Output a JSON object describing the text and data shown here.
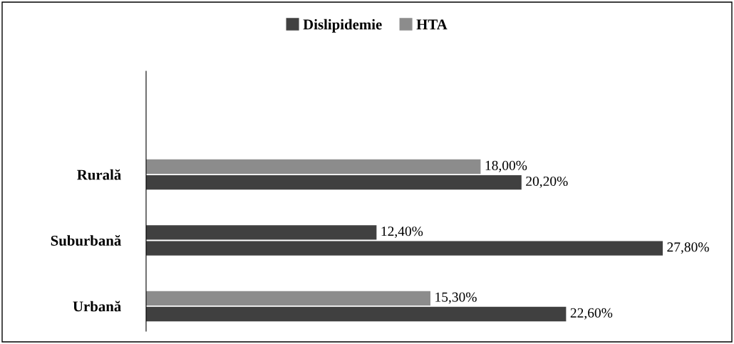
{
  "chart_data": {
    "type": "bar",
    "orientation": "horizontal",
    "categories": [
      "Rurală",
      "Suburbană",
      "Urbană"
    ],
    "series": [
      {
        "name": "HTA",
        "color": "#8c8c8c",
        "colors": [
          "#8c8c8c",
          "#404040",
          "#8c8c8c"
        ],
        "values": [
          18.0,
          12.4,
          15.3
        ],
        "value_labels": [
          "18,00%",
          "12,40%",
          "15,30%"
        ]
      },
      {
        "name": "Dislipidemie",
        "color": "#404040",
        "values": [
          20.2,
          27.8,
          22.6
        ],
        "value_labels": [
          "20,20%",
          "27,80%",
          "22,60%"
        ]
      }
    ],
    "tick_labels": "y",
    "grid": false,
    "legend": "top"
  }
}
